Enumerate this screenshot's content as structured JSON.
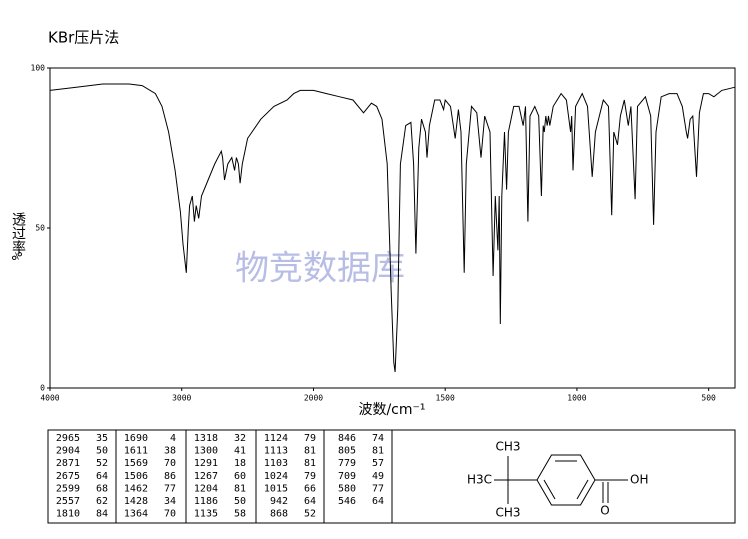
{
  "chart_data": {
    "type": "line",
    "title": "KBr压片法",
    "x_label": "波数/cm⁻¹",
    "y_label": "透过率",
    "y_unit": "%",
    "watermark": "物竞数据库",
    "xlim": [
      4000,
      400
    ],
    "xscale_break": 2000,
    "ylim": [
      0,
      100
    ],
    "xticks": [
      4000,
      3000,
      2000,
      1500,
      1000,
      500
    ],
    "yticks": [
      0,
      50,
      100
    ],
    "x": [
      4000,
      3800,
      3600,
      3400,
      3300,
      3200,
      3150,
      3100,
      3050,
      3010,
      2990,
      2965,
      2950,
      2940,
      2920,
      2904,
      2890,
      2871,
      2850,
      2800,
      2750,
      2700,
      2690,
      2675,
      2650,
      2620,
      2599,
      2585,
      2570,
      2557,
      2540,
      2500,
      2400,
      2300,
      2200,
      2150,
      2100,
      2050,
      2000,
      1950,
      1900,
      1850,
      1810,
      1780,
      1760,
      1740,
      1720,
      1705,
      1695,
      1690,
      1680,
      1670,
      1650,
      1630,
      1620,
      1611,
      1600,
      1590,
      1575,
      1569,
      1560,
      1540,
      1520,
      1506,
      1500,
      1480,
      1462,
      1450,
      1440,
      1428,
      1420,
      1400,
      1380,
      1364,
      1350,
      1330,
      1318,
      1310,
      1300,
      1295,
      1291,
      1285,
      1275,
      1267,
      1260,
      1240,
      1220,
      1204,
      1195,
      1186,
      1178,
      1160,
      1145,
      1135,
      1128,
      1124,
      1118,
      1113,
      1108,
      1103,
      1090,
      1060,
      1040,
      1024,
      1020,
      1015,
      1005,
      980,
      960,
      942,
      930,
      900,
      880,
      868,
      860,
      846,
      835,
      820,
      805,
      795,
      779,
      770,
      740,
      720,
      709,
      700,
      680,
      650,
      620,
      600,
      585,
      580,
      570,
      560,
      546,
      535,
      520,
      500,
      480,
      450,
      400
    ],
    "series": [
      {
        "color": "#000000",
        "values": [
          93,
          94,
          95,
          95,
          94.5,
          92,
          88,
          80,
          68,
          55,
          45,
          36,
          50,
          57,
          60,
          52,
          57,
          53,
          60,
          65,
          70,
          74,
          72,
          65,
          70,
          72,
          68,
          72,
          70,
          64,
          70,
          78,
          84,
          88,
          90,
          92,
          93,
          93,
          93,
          92,
          91,
          90,
          86,
          89,
          88,
          84,
          70,
          30,
          8,
          5,
          25,
          70,
          82,
          83,
          70,
          42,
          75,
          84,
          80,
          72,
          82,
          90,
          90,
          87,
          90,
          88,
          78,
          87,
          80,
          36,
          70,
          88,
          86,
          72,
          85,
          80,
          35,
          60,
          43,
          60,
          20,
          60,
          80,
          62,
          80,
          88,
          88,
          82,
          88,
          52,
          85,
          88,
          85,
          60,
          82,
          80,
          85,
          82,
          85,
          82,
          88,
          92,
          90,
          80,
          85,
          68,
          88,
          92,
          88,
          66,
          80,
          90,
          88,
          54,
          80,
          76,
          85,
          90,
          82,
          88,
          59,
          88,
          91,
          85,
          51,
          80,
          91,
          92,
          92,
          88,
          80,
          78,
          84,
          85,
          66,
          86,
          92,
          92,
          91,
          93,
          94
        ]
      }
    ]
  },
  "peak_table": {
    "columns": [
      [
        [
          2965,
          35
        ],
        [
          2904,
          50
        ],
        [
          2871,
          52
        ],
        [
          2675,
          64
        ],
        [
          2599,
          68
        ],
        [
          2557,
          62
        ],
        [
          1810,
          84
        ]
      ],
      [
        [
          1690,
          4
        ],
        [
          1611,
          38
        ],
        [
          1569,
          70
        ],
        [
          1506,
          86
        ],
        [
          1462,
          77
        ],
        [
          1428,
          34
        ],
        [
          1364,
          70
        ]
      ],
      [
        [
          1318,
          32
        ],
        [
          1300,
          41
        ],
        [
          1291,
          18
        ],
        [
          1267,
          60
        ],
        [
          1204,
          81
        ],
        [
          1186,
          50
        ],
        [
          1135,
          58
        ]
      ],
      [
        [
          1124,
          79
        ],
        [
          1113,
          81
        ],
        [
          1103,
          81
        ],
        [
          1024,
          79
        ],
        [
          1015,
          66
        ],
        [
          942,
          64
        ],
        [
          868,
          52
        ]
      ],
      [
        [
          846,
          74
        ],
        [
          805,
          81
        ],
        [
          779,
          57
        ],
        [
          709,
          49
        ],
        [
          580,
          77
        ],
        [
          546,
          64
        ]
      ]
    ]
  },
  "structure": {
    "labels": [
      "CH3",
      "H3C",
      "CH3",
      "O",
      "OH"
    ]
  }
}
